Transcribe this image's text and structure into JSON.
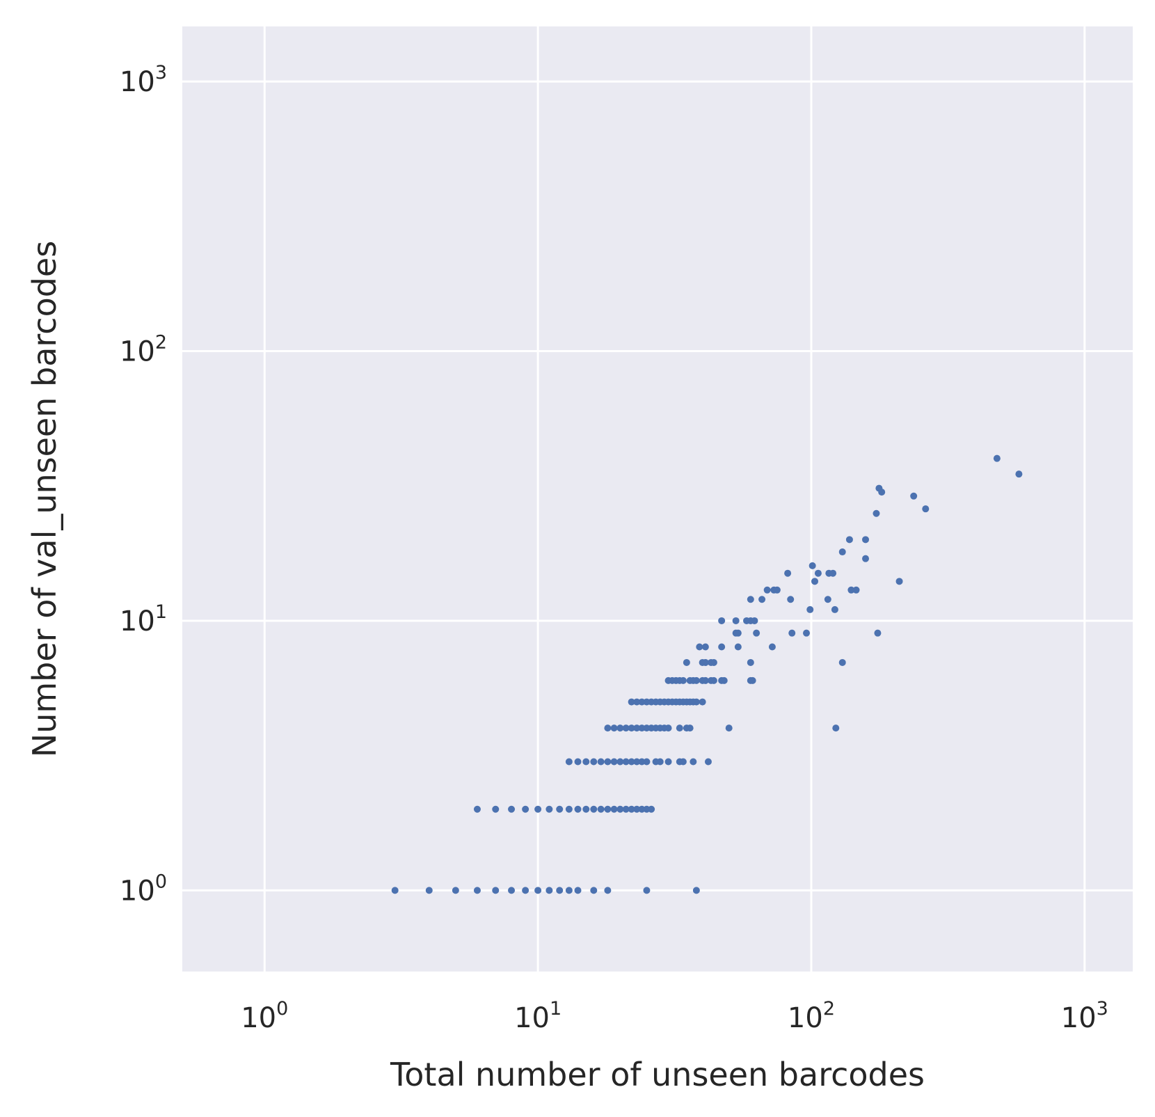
{
  "chart_data": {
    "type": "scatter",
    "title": "",
    "xlabel": "Total number of unseen barcodes",
    "ylabel": "Number of val_unseen barcodes",
    "xscale": "log",
    "yscale": "log",
    "xlim": [
      0.5,
      1500
    ],
    "ylim": [
      0.5,
      1600
    ],
    "grid": true,
    "legend": "none",
    "point_color": "#4c72b0",
    "background_color": "#eaeaf2",
    "xticks": [
      {
        "value": 1,
        "base": "10",
        "exp": "0"
      },
      {
        "value": 10,
        "base": "10",
        "exp": "1"
      },
      {
        "value": 100,
        "base": "10",
        "exp": "2"
      },
      {
        "value": 1000,
        "base": "10",
        "exp": "3"
      }
    ],
    "yticks": [
      {
        "value": 1,
        "base": "10",
        "exp": "0"
      },
      {
        "value": 10,
        "base": "10",
        "exp": "1"
      },
      {
        "value": 100,
        "base": "10",
        "exp": "2"
      },
      {
        "value": 1000,
        "base": "10",
        "exp": "3"
      }
    ],
    "points": [
      [
        3,
        1
      ],
      [
        4,
        1
      ],
      [
        5,
        1
      ],
      [
        6,
        1
      ],
      [
        7,
        1
      ],
      [
        8,
        1
      ],
      [
        9,
        1
      ],
      [
        10,
        1
      ],
      [
        11,
        1
      ],
      [
        12,
        1
      ],
      [
        13,
        1
      ],
      [
        14,
        1
      ],
      [
        16,
        1
      ],
      [
        18,
        1
      ],
      [
        25,
        1
      ],
      [
        38,
        1
      ],
      [
        6,
        2
      ],
      [
        7,
        2
      ],
      [
        8,
        2
      ],
      [
        9,
        2
      ],
      [
        10,
        2
      ],
      [
        11,
        2
      ],
      [
        12,
        2
      ],
      [
        13,
        2
      ],
      [
        14,
        2
      ],
      [
        15,
        2
      ],
      [
        16,
        2
      ],
      [
        17,
        2
      ],
      [
        18,
        2
      ],
      [
        19,
        2
      ],
      [
        20,
        2
      ],
      [
        21,
        2
      ],
      [
        22,
        2
      ],
      [
        23,
        2
      ],
      [
        24,
        2
      ],
      [
        25,
        2
      ],
      [
        26,
        2
      ],
      [
        13,
        3
      ],
      [
        14,
        3
      ],
      [
        15,
        3
      ],
      [
        16,
        3
      ],
      [
        17,
        3
      ],
      [
        18,
        3
      ],
      [
        19,
        3
      ],
      [
        20,
        3
      ],
      [
        21,
        3
      ],
      [
        22,
        3
      ],
      [
        23,
        3
      ],
      [
        24,
        3
      ],
      [
        25,
        3
      ],
      [
        27,
        3
      ],
      [
        28,
        3
      ],
      [
        30,
        3
      ],
      [
        33,
        3
      ],
      [
        34,
        3
      ],
      [
        37,
        3
      ],
      [
        42,
        3
      ],
      [
        18,
        4
      ],
      [
        19,
        4
      ],
      [
        20,
        4
      ],
      [
        21,
        4
      ],
      [
        22,
        4
      ],
      [
        23,
        4
      ],
      [
        24,
        4
      ],
      [
        25,
        4
      ],
      [
        26,
        4
      ],
      [
        27,
        4
      ],
      [
        28,
        4
      ],
      [
        29,
        4
      ],
      [
        30,
        4
      ],
      [
        33,
        4
      ],
      [
        35,
        4
      ],
      [
        36,
        4
      ],
      [
        50,
        4
      ],
      [
        123,
        4
      ],
      [
        22,
        5
      ],
      [
        23,
        5
      ],
      [
        24,
        5
      ],
      [
        25,
        5
      ],
      [
        26,
        5
      ],
      [
        27,
        5
      ],
      [
        28,
        5
      ],
      [
        29,
        5
      ],
      [
        30,
        5
      ],
      [
        31,
        5
      ],
      [
        32,
        5
      ],
      [
        33,
        5
      ],
      [
        34,
        5
      ],
      [
        35,
        5
      ],
      [
        36,
        5
      ],
      [
        37,
        5
      ],
      [
        38,
        5
      ],
      [
        40,
        5
      ],
      [
        30,
        6
      ],
      [
        31,
        6
      ],
      [
        32,
        6
      ],
      [
        33,
        6
      ],
      [
        34,
        6
      ],
      [
        36,
        6
      ],
      [
        37,
        6
      ],
      [
        38,
        6
      ],
      [
        40,
        6
      ],
      [
        41,
        6
      ],
      [
        43,
        6
      ],
      [
        44,
        6
      ],
      [
        47,
        6
      ],
      [
        48,
        6
      ],
      [
        60,
        6
      ],
      [
        61,
        6
      ],
      [
        35,
        7
      ],
      [
        40,
        7
      ],
      [
        41,
        7
      ],
      [
        43,
        7
      ],
      [
        44,
        7
      ],
      [
        60,
        7
      ],
      [
        130,
        7
      ],
      [
        39,
        8
      ],
      [
        41,
        8
      ],
      [
        47,
        8
      ],
      [
        54,
        8
      ],
      [
        72,
        8
      ],
      [
        53,
        9
      ],
      [
        54,
        9
      ],
      [
        63,
        9
      ],
      [
        85,
        9
      ],
      [
        96,
        9
      ],
      [
        175,
        9
      ],
      [
        47,
        10
      ],
      [
        53,
        10
      ],
      [
        58,
        10
      ],
      [
        60,
        10
      ],
      [
        62,
        10
      ],
      [
        99,
        11
      ],
      [
        122,
        11
      ],
      [
        60,
        12
      ],
      [
        66,
        12
      ],
      [
        84,
        12
      ],
      [
        115,
        12
      ],
      [
        69,
        13
      ],
      [
        73,
        13
      ],
      [
        75,
        13
      ],
      [
        140,
        13
      ],
      [
        146,
        13
      ],
      [
        103,
        14
      ],
      [
        210,
        14
      ],
      [
        82,
        15
      ],
      [
        106,
        15
      ],
      [
        116,
        15
      ],
      [
        120,
        15
      ],
      [
        101,
        16
      ],
      [
        158,
        17
      ],
      [
        130,
        18
      ],
      [
        138,
        20
      ],
      [
        158,
        20
      ],
      [
        173,
        25
      ],
      [
        262,
        26
      ],
      [
        237,
        29
      ],
      [
        181,
        30
      ],
      [
        177,
        31
      ],
      [
        575,
        35
      ],
      [
        478,
        40
      ]
    ]
  }
}
